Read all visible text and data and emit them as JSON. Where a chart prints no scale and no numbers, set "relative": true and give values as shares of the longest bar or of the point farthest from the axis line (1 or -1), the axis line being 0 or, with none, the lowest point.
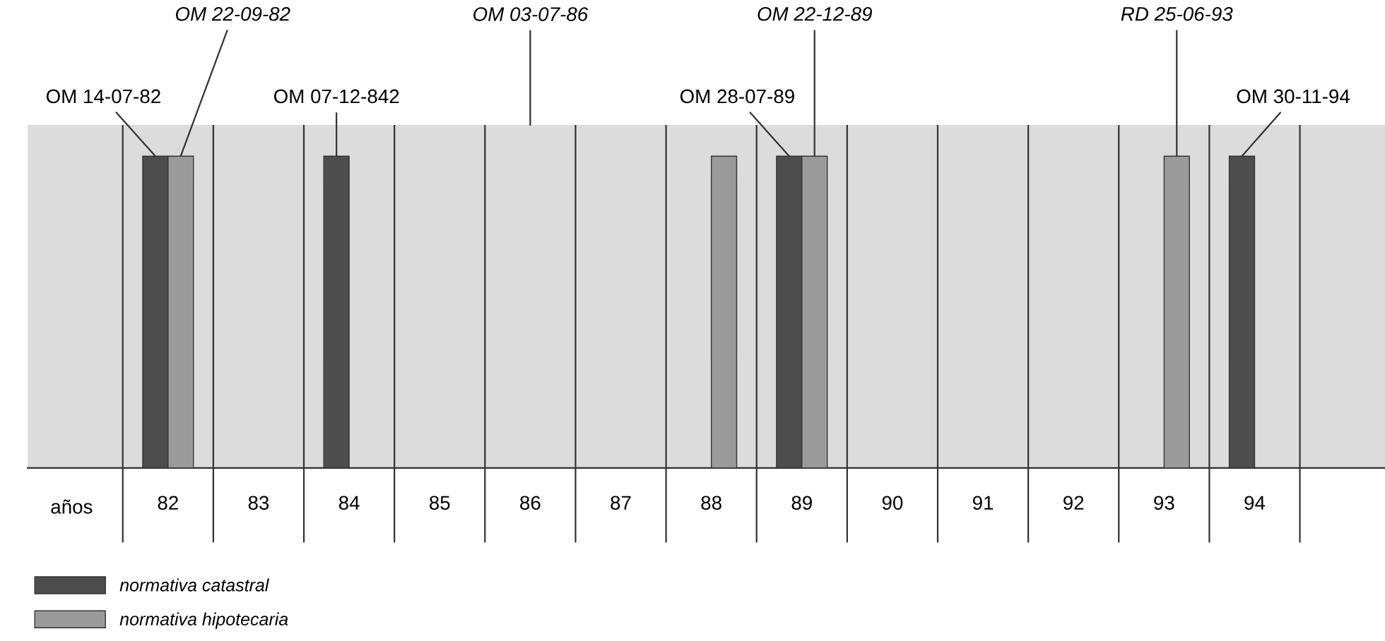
{
  "chart_data": {
    "type": "bar",
    "relative": true,
    "xlabel": "años",
    "categories": [
      "82",
      "83",
      "84",
      "85",
      "86",
      "87",
      "88",
      "89",
      "90",
      "91",
      "92",
      "93",
      "94"
    ],
    "series": [
      {
        "name": "normativa catastral",
        "color": "#4d4d4d",
        "values": [
          1,
          null,
          1,
          null,
          null,
          null,
          null,
          1,
          null,
          null,
          null,
          null,
          1
        ]
      },
      {
        "name": "normativa hipotecaria",
        "color": "#9a9a9a",
        "values": [
          1,
          null,
          null,
          null,
          null,
          null,
          1,
          1,
          null,
          null,
          null,
          1,
          null
        ]
      }
    ],
    "annotations": [
      {
        "text": "OM 14-07-82",
        "x": "82",
        "y": 1
      },
      "OM 22-09-82",
      {
        "text": "OM 07-12-842",
        "x": "84",
        "y": 1
      },
      "OM 03-07-86",
      {
        "text": "OM 28-07-89",
        "x": "89",
        "y": 1
      },
      "OM 22-12-89",
      "RD 25-06-93",
      {
        "text": "OM 30-11-94",
        "x": "94",
        "y": 1
      }
    ],
    "grid": "x",
    "legend": "bottom left"
  }
}
